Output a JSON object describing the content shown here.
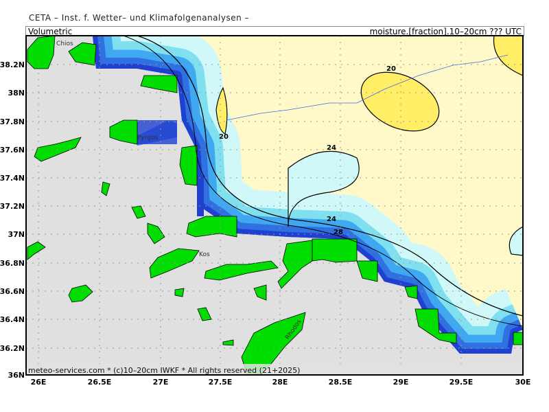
{
  "header": {
    "title": "CETA – Inst. f. Wetter– und Klimafolgenanalysen –"
  },
  "subheader": {
    "left": "Volumetric",
    "right": "moisture.[fraction].10–20cm ??? UTC"
  },
  "footer": {
    "credit": "meteo-services.com * (c)10–20cm IWKF * All rights reserved (21+2025)"
  },
  "axes": {
    "x_ticks": [
      "26E",
      "26.5E",
      "27E",
      "27.5E",
      "28E",
      "28.5E",
      "29E",
      "29.5E",
      "30E"
    ],
    "y_ticks": [
      "38.2N",
      "38N",
      "37.8N",
      "37.6N",
      "37.4N",
      "37.2N",
      "37N",
      "36.8N",
      "36.6N",
      "36.4N",
      "36.2N",
      "36N"
    ]
  },
  "contour_labels": [
    "20",
    "20",
    "24",
    "24",
    "28"
  ],
  "place_labels": [
    "Chios",
    "Pyrgos",
    "Kos",
    "Rhodos"
  ],
  "colors": {
    "sea": "#e0e0e0",
    "land_dry": "#fff8c8",
    "high_yellow": "#ffee66",
    "cyan_light": "#d0f8f8",
    "cyan": "#80e0f0",
    "blue_mid": "#40a8f0",
    "blue": "#3070e0",
    "blue_dark": "#2040d0",
    "islands": "#00dd00"
  }
}
